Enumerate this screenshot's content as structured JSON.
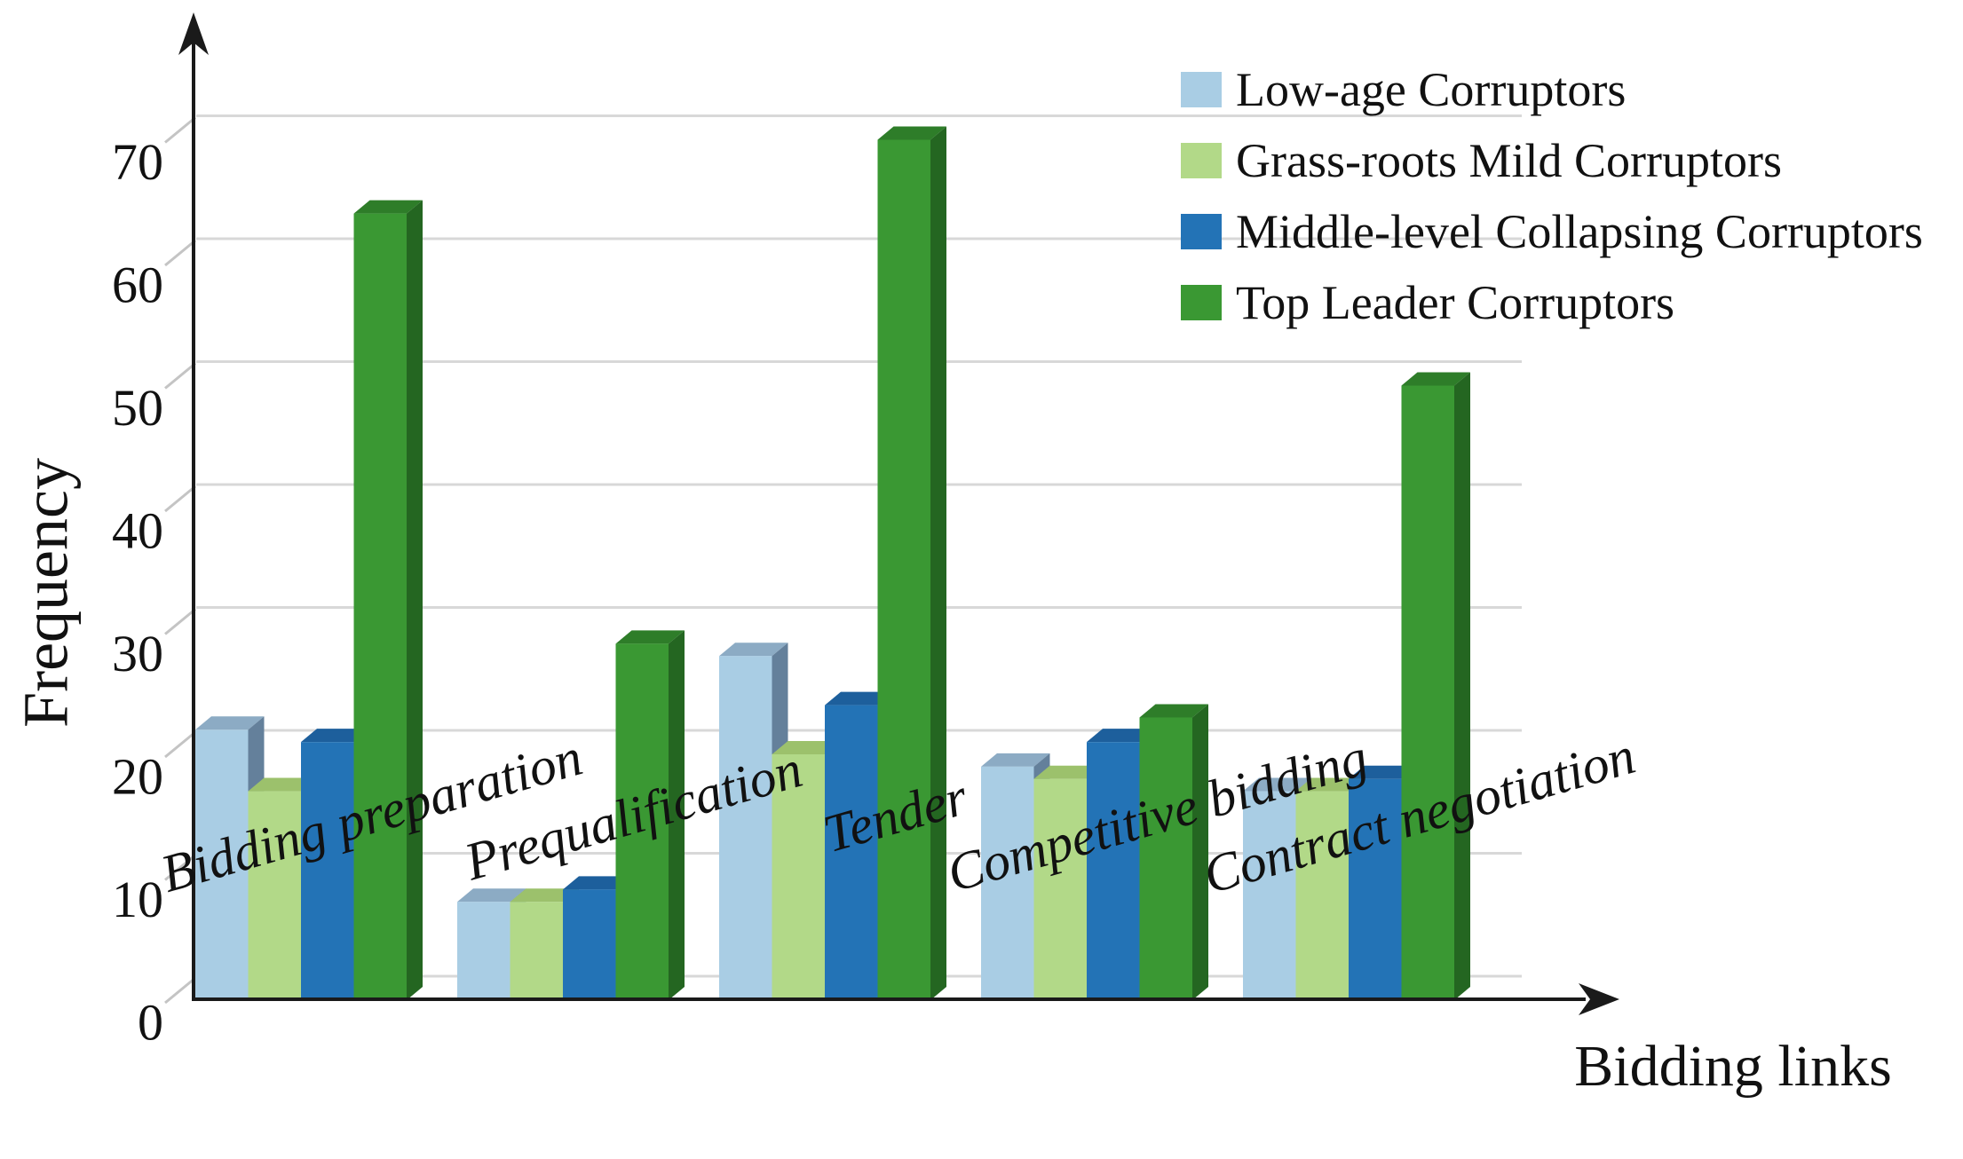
{
  "figure": {
    "background": "#ffffff"
  },
  "chart_data": {
    "type": "bar",
    "projection": "3d-clustered-column",
    "title": "",
    "xlabel": "Bidding links",
    "ylabel": "Frequency",
    "categories": [
      "Bidding preparation",
      "Prequalification",
      "Tender",
      "Competitive bidding",
      "Contract negotiation"
    ],
    "series": [
      {
        "name": "Low-age Corruptors",
        "values": [
          22,
          8,
          28,
          19,
          17
        ],
        "color": {
          "front": "#a9cde4",
          "side": "#64809b",
          "top": "#8cabc4"
        }
      },
      {
        "name": "Grass-roots Mild Corruptors",
        "values": [
          17,
          8,
          20,
          18,
          17
        ],
        "color": {
          "front": "#b2d988",
          "side": "#86ac56",
          "top": "#9cc16c"
        }
      },
      {
        "name": "Middle-level Collapsing Corruptors",
        "values": [
          21,
          9,
          24,
          21,
          18
        ],
        "color": {
          "front": "#2373b6",
          "side": "#164e81",
          "top": "#1d5f9c"
        }
      },
      {
        "name": "Top Leader Corruptors",
        "values": [
          64,
          29,
          70,
          23,
          50
        ],
        "color": {
          "front": "#3a9833",
          "side": "#246621",
          "top": "#2e7d29"
        }
      }
    ],
    "ylim": [
      0,
      75
    ],
    "yticks": [
      0,
      10,
      20,
      30,
      40,
      50,
      60,
      70
    ],
    "grid": "horizontal",
    "legend_position": "top-right",
    "gridline_color": "#d8d8d8",
    "tick_color": "#c4c4c4",
    "axis_color": "#1a1a1a",
    "text_color": "#111111"
  }
}
